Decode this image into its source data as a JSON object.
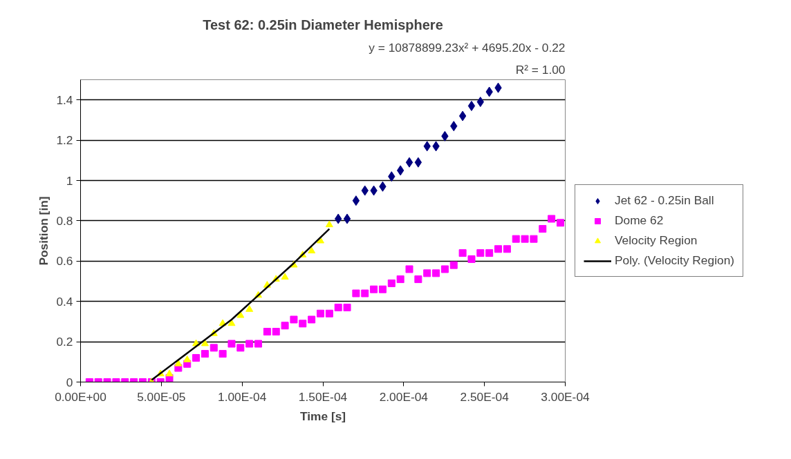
{
  "chart_data": {
    "type": "scatter",
    "title": "Test 62: 0.25in Diameter Hemisphere",
    "xlabel": "Time [s]",
    "ylabel": "Position [in]",
    "annotations": [
      "y = 10878899.23x² + 4695.20x - 0.22",
      "R² = 1.00"
    ],
    "xlim": [
      0,
      0.0003
    ],
    "ylim": [
      0,
      1.5
    ],
    "xticks": [
      {
        "value": 0,
        "label": "0.00E+00"
      },
      {
        "value": 5e-05,
        "label": "5.00E-05"
      },
      {
        "value": 0.0001,
        "label": "1.00E-04"
      },
      {
        "value": 0.00015,
        "label": "1.50E-04"
      },
      {
        "value": 0.0002,
        "label": "2.00E-04"
      },
      {
        "value": 0.00025,
        "label": "2.50E-04"
      },
      {
        "value": 0.0003,
        "label": "3.00E-04"
      }
    ],
    "yticks": [
      0,
      0.2,
      0.4,
      0.6,
      {
        "value": 0.8,
        "label": "0.8"
      },
      1,
      1.2,
      1.4
    ],
    "grid": "y",
    "legend": "right",
    "series": [
      {
        "name": "Jet 62 - 0.25in Ball",
        "color": "#000080",
        "marker": "diamond",
        "x": [
          0.0001595,
          0.000165,
          0.0001705,
          0.000176,
          0.0001815,
          0.000187,
          0.0001925,
          0.000198,
          0.0002035,
          0.000209,
          0.0002145,
          0.00022,
          0.0002255,
          0.000231,
          0.0002365,
          0.000242,
          0.0002475,
          0.000253,
          0.0002585
        ],
        "values": [
          0.81,
          0.81,
          0.9,
          0.95,
          0.95,
          0.97,
          1.02,
          1.05,
          1.09,
          1.09,
          1.17,
          1.17,
          1.22,
          1.27,
          1.32,
          1.37,
          1.39,
          1.44,
          1.46
        ]
      },
      {
        "name": "Dome 62",
        "color": "#ff00ff",
        "marker": "square",
        "x": [
          5.5e-06,
          1.1e-05,
          1.65e-05,
          2.2e-05,
          2.75e-05,
          3.3e-05,
          3.85e-05,
          4.4e-05,
          4.95e-05,
          5.5e-05,
          6.05e-05,
          6.6e-05,
          7.15e-05,
          7.7e-05,
          8.25e-05,
          8.8e-05,
          9.35e-05,
          9.9e-05,
          0.0001045,
          0.00011,
          0.0001155,
          0.000121,
          0.0001265,
          0.000132,
          0.0001375,
          0.000143,
          0.0001485,
          0.000154,
          0.0001595,
          0.000165,
          0.0001705,
          0.000176,
          0.0001815,
          0.000187,
          0.0001925,
          0.000198,
          0.0002035,
          0.000209,
          0.0002145,
          0.00022,
          0.0002255,
          0.000231,
          0.0002365,
          0.000242,
          0.0002475,
          0.000253,
          0.0002585,
          0.000264,
          0.0002695,
          0.000275,
          0.0002805,
          0.000286,
          0.0002915,
          0.000297
        ],
        "values": [
          0,
          0,
          0,
          0,
          0,
          0,
          0,
          0,
          0,
          0.02,
          0.07,
          0.09,
          0.12,
          0.14,
          0.17,
          0.14,
          0.19,
          0.17,
          0.19,
          0.19,
          0.25,
          0.25,
          0.28,
          0.31,
          0.29,
          0.31,
          0.34,
          0.34,
          0.37,
          0.37,
          0.44,
          0.44,
          0.46,
          0.46,
          0.49,
          0.51,
          0.56,
          0.51,
          0.54,
          0.54,
          0.56,
          0.58,
          0.64,
          0.61,
          0.64,
          0.64,
          0.66,
          0.66,
          0.71,
          0.71,
          0.71,
          0.76,
          0.81,
          0.79
        ]
      },
      {
        "name": "Velocity Region",
        "color": "#ffff00",
        "marker": "triangle",
        "x": [
          4.4e-05,
          4.95e-05,
          5.5e-05,
          6.05e-05,
          6.6e-05,
          7.15e-05,
          7.7e-05,
          8.25e-05,
          8.8e-05,
          9.35e-05,
          9.9e-05,
          0.0001045,
          0.00011,
          0.0001155,
          0.000121,
          0.0001265,
          0.000132,
          0.0001375,
          0.000143,
          0.0001485,
          0.000154
        ],
        "values": [
          0,
          0.04,
          0.04,
          0.09,
          0.11,
          0.19,
          0.19,
          0.24,
          0.29,
          0.29,
          0.33,
          0.36,
          0.43,
          0.48,
          0.51,
          0.52,
          0.58,
          0.63,
          0.65,
          0.7,
          0.78
        ]
      },
      {
        "name": "Poly. (Velocity Region)",
        "type": "line",
        "color": "#000000",
        "line_style": "solid",
        "x": [
          4.4e-05,
          7.7e-05,
          9.35e-05,
          0.00011,
          0.000132,
          0.000154
        ],
        "values": [
          0.01,
          0.21,
          0.31,
          0.43,
          0.59,
          0.76
        ]
      }
    ]
  }
}
